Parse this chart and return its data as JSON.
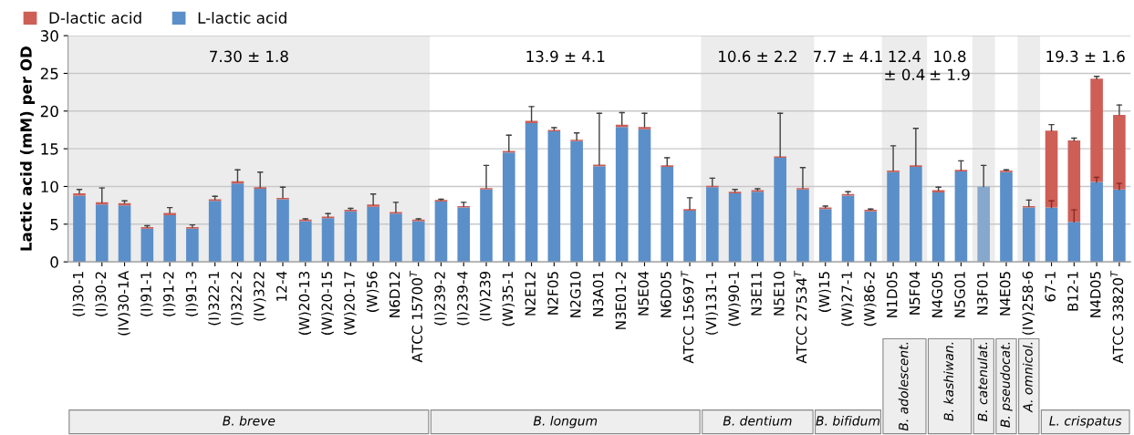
{
  "chart_data": {
    "type": "bar",
    "stacked": true,
    "ylabel": "Lactic acid (mM) per OD",
    "categories": [
      "(I)30-1",
      "(I)30-2",
      "(IV)30-1A",
      "(I)91-1",
      "(I)91-2",
      "(I)91-3",
      "(I)322-1",
      "(I)322-2",
      "(IV)322",
      "12-4",
      "(W)20-13",
      "(W)20-15",
      "(W)20-17",
      "(W)56",
      "N6D12",
      "ATCC 15700$^{T}$",
      "(I)239-2",
      "(I)239-4",
      "(IV)239",
      "(W)35-1",
      "N2E12",
      "N2F05",
      "N2G10",
      "N3A01",
      "N3E01-2",
      "N5E04",
      "N6D05",
      "ATCC 15697$^{T}$",
      "(VI)131-1",
      "(W)90-1",
      "N3E11",
      "N5E10",
      "ATCC 27534$^{T}$",
      "(W)15",
      "(W)27-1",
      "(W)86-2",
      "N1D05",
      "N5F04",
      "N4G05",
      "N5G01",
      "N3F01",
      "N4E05",
      "(IV)258-6",
      "67-1",
      "B12-1",
      "N4D05",
      "ATCC 33820$^{T}$"
    ],
    "series": [
      {
        "name": "L-lactic acid",
        "color": "#5b8fc9",
        "colors": [
          "#5b8fc9",
          "#5b8fc9",
          "#5b8fc9",
          "#5b8fc9",
          "#5b8fc9",
          "#5b8fc9",
          "#5b8fc9",
          "#5b8fc9",
          "#5b8fc9",
          "#5b8fc9",
          "#5b8fc9",
          "#5b8fc9",
          "#5b8fc9",
          "#5b8fc9",
          "#5b8fc9",
          "#5b8fc9",
          "#5b8fc9",
          "#5b8fc9",
          "#5b8fc9",
          "#5b8fc9",
          "#5b8fc9",
          "#5b8fc9",
          "#5b8fc9",
          "#5b8fc9",
          "#5b8fc9",
          "#5b8fc9",
          "#5b8fc9",
          "#5b8fc9",
          "#5b8fc9",
          "#5b8fc9",
          "#5b8fc9",
          "#5b8fc9",
          "#5b8fc9",
          "#5b8fc9",
          "#5b8fc9",
          "#5b8fc9",
          "#5b8fc9",
          "#5b8fc9",
          "#5b8fc9",
          "#5b8fc9",
          "#86a8cc",
          "#5b8fc9",
          "#5b8fc9",
          "#5b8fc9",
          "#5b8fc9",
          "#5b8fc9",
          "#5b8fc9"
        ],
        "values": [
          8.8,
          7.6,
          7.5,
          4.4,
          6.2,
          4.4,
          8.1,
          10.4,
          9.7,
          8.3,
          5.4,
          5.8,
          6.7,
          7.3,
          6.4,
          5.4,
          8.0,
          7.2,
          9.6,
          14.5,
          18.4,
          17.3,
          16.0,
          12.7,
          17.9,
          17.6,
          12.6,
          6.8,
          9.9,
          9.1,
          9.3,
          13.8,
          9.6,
          7.0,
          8.8,
          6.7,
          11.9,
          12.6,
          9.2,
          12.0,
          10.0,
          11.9,
          7.2,
          7.2,
          5.3,
          10.6,
          9.6
        ],
        "errors": [
          null,
          null,
          null,
          null,
          null,
          null,
          null,
          null,
          null,
          null,
          null,
          null,
          null,
          null,
          null,
          null,
          null,
          null,
          null,
          null,
          null,
          null,
          null,
          null,
          null,
          null,
          null,
          null,
          null,
          null,
          null,
          null,
          null,
          null,
          null,
          null,
          null,
          null,
          null,
          null,
          null,
          null,
          null,
          [
            7.2,
            8.1
          ],
          [
            5.3,
            6.9
          ],
          [
            10.6,
            11.2
          ],
          [
            9.6,
            10.4
          ]
        ]
      },
      {
        "name": "D-lactic acid",
        "color": "#cd5f57",
        "values": [
          0.3,
          0.3,
          0.3,
          0.2,
          0.3,
          0.2,
          0.2,
          0.3,
          0.2,
          0.2,
          0.2,
          0.2,
          0.2,
          0.3,
          0.2,
          0.2,
          0.2,
          0.2,
          0.2,
          0.2,
          0.3,
          0.2,
          0.2,
          0.2,
          0.3,
          0.3,
          0.2,
          0.2,
          0.2,
          0.2,
          0.2,
          0.2,
          0.2,
          0.2,
          0.2,
          0.2,
          0.2,
          0.2,
          0.3,
          0.2,
          0.0,
          0.2,
          0.2,
          10.2,
          10.8,
          13.7,
          9.9
        ],
        "errors": [
          [
            9.1,
            9.6
          ],
          [
            7.9,
            9.8
          ],
          [
            7.8,
            8.1
          ],
          [
            4.6,
            4.8
          ],
          [
            6.5,
            7.2
          ],
          [
            4.6,
            4.9
          ],
          [
            8.3,
            8.7
          ],
          [
            10.7,
            12.2
          ],
          [
            9.9,
            11.9
          ],
          [
            8.5,
            9.9
          ],
          [
            5.6,
            5.7
          ],
          [
            6.0,
            6.4
          ],
          [
            6.9,
            7.1
          ],
          [
            7.6,
            9.0
          ],
          [
            6.6,
            7.9
          ],
          [
            5.6,
            5.7
          ],
          [
            8.2,
            8.3
          ],
          [
            7.4,
            7.9
          ],
          [
            9.8,
            12.8
          ],
          [
            14.7,
            16.8
          ],
          [
            18.7,
            20.6
          ],
          [
            17.5,
            17.8
          ],
          [
            16.2,
            17.1
          ],
          [
            12.9,
            19.7
          ],
          [
            18.2,
            19.8
          ],
          [
            17.9,
            19.7
          ],
          [
            12.8,
            13.8
          ],
          [
            7.0,
            8.5
          ],
          [
            10.1,
            11.1
          ],
          [
            9.3,
            9.6
          ],
          [
            9.5,
            9.7
          ],
          [
            14.0,
            19.7
          ],
          [
            9.8,
            12.5
          ],
          [
            7.2,
            7.4
          ],
          [
            9.0,
            9.3
          ],
          [
            6.9,
            7.0
          ],
          [
            12.1,
            15.4
          ],
          [
            12.8,
            17.7
          ],
          [
            9.5,
            9.9
          ],
          [
            12.2,
            13.4
          ],
          [
            10.0,
            12.8
          ],
          [
            12.1,
            12.2
          ],
          [
            7.4,
            8.2
          ],
          [
            17.4,
            18.2
          ],
          [
            16.1,
            16.4
          ],
          [
            24.3,
            24.6
          ],
          [
            19.5,
            20.8
          ]
        ]
      }
    ],
    "ylim": [
      0,
      30
    ],
    "yticks": [
      0,
      5,
      10,
      15,
      20,
      25,
      30
    ],
    "grid": "y",
    "legend": "top left",
    "bands": [
      {
        "axis": "x",
        "from": "(I)30-1",
        "to": "ATCC 15700$^{T}$",
        "color": "#ececec"
      },
      {
        "axis": "x",
        "from": "(VI)131-1",
        "to": "ATCC 27534$^{T}$",
        "color": "#ececec"
      },
      {
        "axis": "x",
        "from": "N1D05",
        "to": "N5F04",
        "color": "#ececec"
      },
      {
        "axis": "x",
        "from": "N3F01",
        "to": "N3F01",
        "color": "#ececec"
      },
      {
        "axis": "x",
        "from": "(IV)258-6",
        "to": "(IV)258-6",
        "color": "#ececec"
      }
    ],
    "annotations": [
      "7.30 ± 1.8",
      "13.9 ± 4.1",
      "10.6 ± 2.2",
      "7.7 ± 4.1",
      "12.4\n± 0.4",
      "10.8\n± 1.9",
      "19.3 ± 1.6",
      "B. breve",
      "B. longum",
      "B. dentium",
      "B. bifidum",
      "B. adolescent.",
      "B. kashiwan.",
      "B. catenulat.",
      "B. pseudocat.",
      "A. omnicol.",
      "L. crispatus"
    ]
  }
}
